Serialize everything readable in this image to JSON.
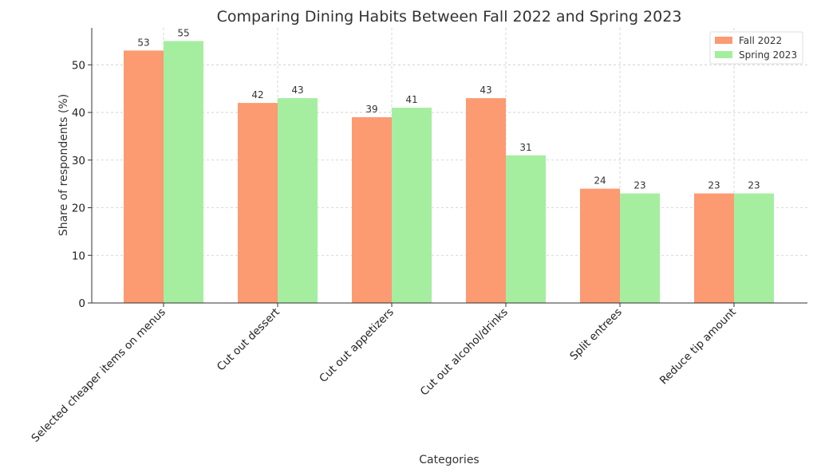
{
  "chart_data": {
    "type": "bar",
    "title": "Comparing Dining Habits Between Fall 2022 and Spring 2023",
    "xlabel": "Categories",
    "ylabel": "Share of respondents (%)",
    "categories": [
      "Selected cheaper items on menus",
      "Cut out dessert",
      "Cut out appetizers",
      "Cut out alcohol/drinks",
      "Split entrees",
      "Reduce tip amount"
    ],
    "series": [
      {
        "name": "Fall 2022",
        "color": "#fc9a72",
        "values": [
          53,
          42,
          39,
          43,
          24,
          23
        ]
      },
      {
        "name": "Spring 2023",
        "color": "#a5eea0",
        "values": [
          55,
          43,
          41,
          31,
          23,
          23
        ]
      }
    ],
    "ylim": [
      0,
      57.75
    ],
    "yticks": [
      0,
      10,
      20,
      30,
      40,
      50
    ],
    "grid": true,
    "legend_position": "top-right"
  }
}
